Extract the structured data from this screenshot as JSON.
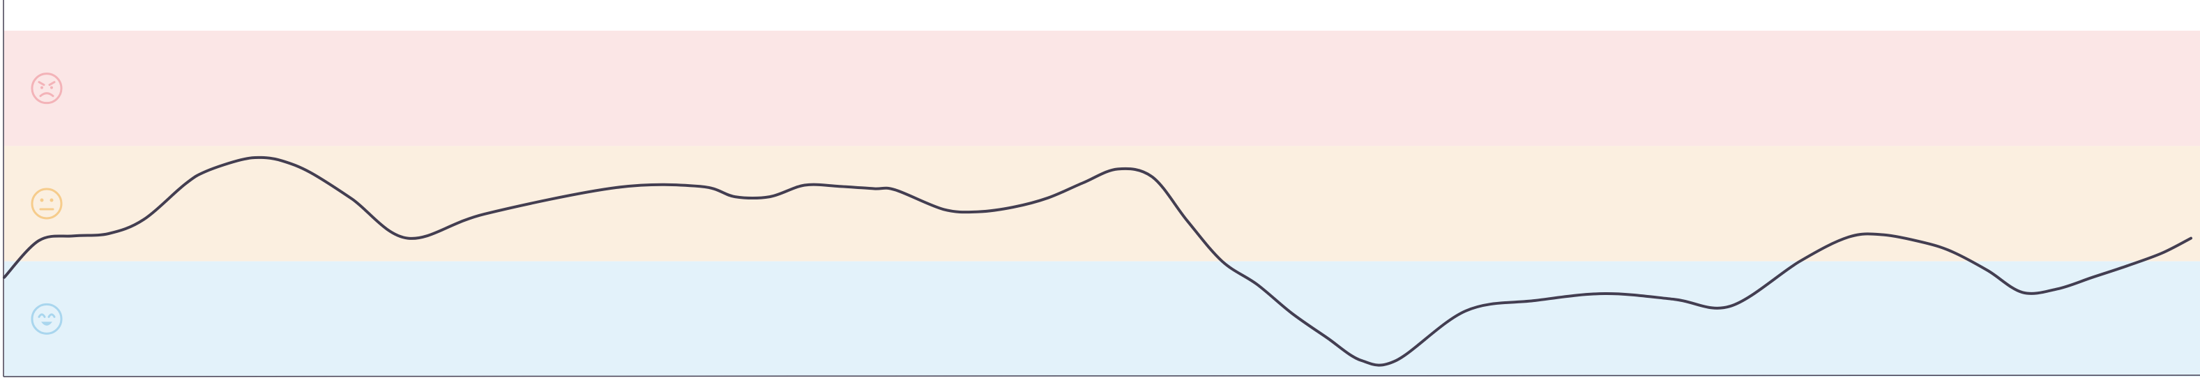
{
  "chart_data": {
    "type": "line",
    "title": "",
    "xlabel": "",
    "ylabel": "",
    "grid": false,
    "legend": "none",
    "ylim": [
      0,
      3
    ],
    "bands": [
      {
        "mood": "angry",
        "icon": "angry-face-icon",
        "y_from": 2,
        "y_to": 3,
        "color": "#fbe6e6",
        "icon_color": "#f3b3b8"
      },
      {
        "mood": "neutral",
        "icon": "neutral-face-icon",
        "y_from": 1,
        "y_to": 2,
        "color": "#fbefe0",
        "icon_color": "#f6cc8c"
      },
      {
        "mood": "happy",
        "icon": "happy-face-icon",
        "y_from": 0,
        "y_to": 1,
        "color": "#e3f2fa",
        "icon_color": "#a9d6ee"
      }
    ],
    "series": [
      {
        "color": "#433e51",
        "x": [
          0,
          50,
          100,
          150,
          200,
          260,
          290,
          340,
          370,
          400,
          440,
          500,
          580,
          690,
          880,
          1000,
          1050,
          1100,
          1150,
          1200,
          1250,
          1280,
          1350,
          1400,
          1450,
          1500,
          1550,
          1600,
          1650,
          1700,
          1750,
          1800,
          1850,
          1900,
          1950,
          2000,
          2100,
          2200,
          2300,
          2400,
          2480,
          2580,
          2650,
          2700,
          2760,
          2800,
          2850,
          2900,
          2950,
          3000,
          3050,
          3100,
          3142
        ],
        "values": [
          0.86,
          1.18,
          1.22,
          1.24,
          1.36,
          1.67,
          1.78,
          1.88,
          1.9,
          1.87,
          1.77,
          1.54,
          1.2,
          1.41,
          1.64,
          1.65,
          1.56,
          1.56,
          1.66,
          1.65,
          1.63,
          1.62,
          1.45,
          1.43,
          1.47,
          1.55,
          1.68,
          1.8,
          1.73,
          1.35,
          1.0,
          0.8,
          0.55,
          0.34,
          0.14,
          0.14,
          0.57,
          0.66,
          0.72,
          0.67,
          0.61,
          1.0,
          1.21,
          1.23,
          1.16,
          1.08,
          0.92,
          0.73,
          0.76,
          0.86,
          0.96,
          1.07,
          1.2
        ]
      }
    ]
  }
}
